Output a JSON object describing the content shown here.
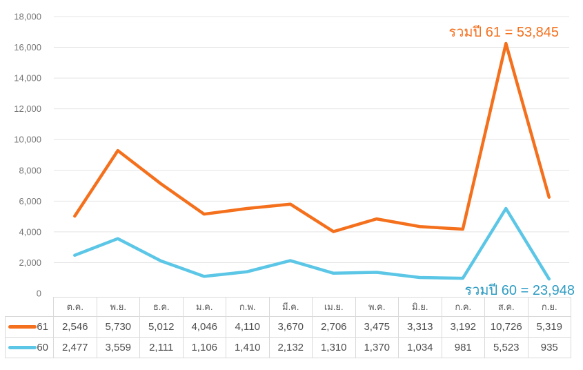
{
  "chart_data": {
    "type": "line",
    "stacked": true,
    "title": "",
    "xlabel": "",
    "ylabel": "",
    "ylim": [
      0,
      18000
    ],
    "ytick_step": 2000,
    "grid": true,
    "legend_position": "table-left",
    "categories": [
      "ต.ค.",
      "พ.ย.",
      "ธ.ค.",
      "ม.ค.",
      "ก.พ.",
      "มี.ค.",
      "เม.ย.",
      "พ.ค.",
      "มิ.ย.",
      "ก.ค.",
      "ส.ค.",
      "ก.ย."
    ],
    "series": [
      {
        "name": "61",
        "color": "#f4701d",
        "values": [
          2546,
          5730,
          5012,
          4046,
          4110,
          3670,
          2706,
          3475,
          3313,
          3192,
          10726,
          5319
        ],
        "total": 53845
      },
      {
        "name": "60",
        "color": "#5bc6e6",
        "values": [
          2477,
          3559,
          2111,
          1106,
          1410,
          2132,
          1310,
          1370,
          1034,
          981,
          5523,
          935
        ],
        "total": 23948
      }
    ],
    "annotations": [
      {
        "text": "รวมปี 61 = 53,845",
        "color": "#f4701d"
      },
      {
        "text": "รวมปี 60 = 23,948",
        "color": "#2f9cc3"
      }
    ],
    "colors": {
      "gridline": "#e4e4e4",
      "axis_label": "#757575",
      "table_border": "#d9d9d9",
      "table_text": "#4d4d4d"
    }
  }
}
